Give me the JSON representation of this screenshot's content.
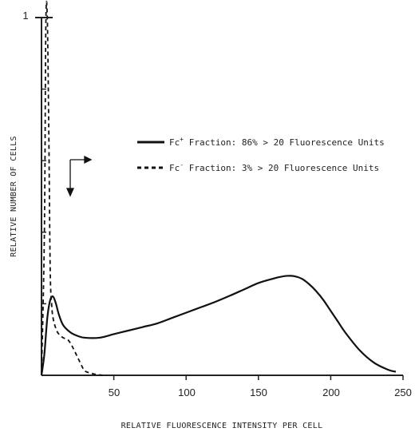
{
  "chart_data": {
    "type": "line",
    "title": "",
    "xlabel": "RELATIVE FLUORESCENCE INTENSITY PER CELL",
    "ylabel": "RELATIVE NUMBER OF CELLS",
    "xlim": [
      0,
      250
    ],
    "ylim": [
      0,
      1
    ],
    "grid": false,
    "legend_position": "top-right",
    "x_ticks": [
      "50",
      "100",
      "150",
      "200",
      "250"
    ],
    "y_ticks": [
      "1"
    ],
    "series": [
      {
        "name_prefix": "Fc",
        "name_sup": "+",
        "name_suffix": " Fraction:  86% > 20 Fluorescence Units",
        "style": "solid",
        "x": [
          0,
          2,
          4,
          6,
          8,
          10,
          12,
          15,
          20,
          25,
          30,
          40,
          50,
          60,
          70,
          80,
          90,
          100,
          110,
          120,
          130,
          140,
          150,
          160,
          165,
          170,
          175,
          180,
          185,
          190,
          195,
          200,
          205,
          210,
          220,
          230,
          240,
          245
        ],
        "values": [
          0.0,
          0.06,
          0.16,
          0.21,
          0.22,
          0.2,
          0.17,
          0.14,
          0.12,
          0.11,
          0.105,
          0.105,
          0.115,
          0.125,
          0.135,
          0.145,
          0.16,
          0.175,
          0.19,
          0.205,
          0.222,
          0.24,
          0.258,
          0.27,
          0.275,
          0.278,
          0.277,
          0.27,
          0.255,
          0.235,
          0.21,
          0.18,
          0.15,
          0.12,
          0.07,
          0.035,
          0.015,
          0.01
        ]
      },
      {
        "name_prefix": "Fc",
        "name_sup": "-",
        "name_suffix": " Fraction:   3% > 20 Fluorescence Units",
        "style": "dashed",
        "x": [
          0,
          2,
          3,
          4,
          5,
          6,
          7,
          8,
          10,
          12,
          15,
          18,
          20,
          22,
          25,
          28,
          30,
          35,
          40,
          45
        ],
        "values": [
          0.0,
          0.4,
          0.98,
          1.0,
          0.7,
          0.3,
          0.2,
          0.16,
          0.13,
          0.115,
          0.105,
          0.1,
          0.09,
          0.075,
          0.05,
          0.025,
          0.012,
          0.005,
          0.001,
          0.0
        ]
      }
    ]
  }
}
